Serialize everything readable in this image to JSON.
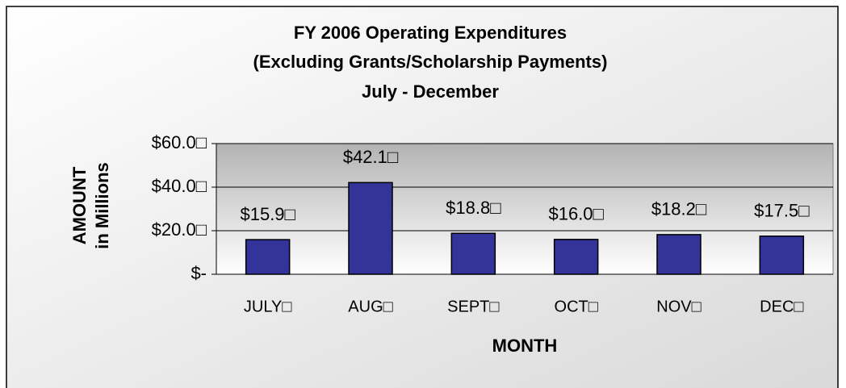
{
  "chart_data": {
    "type": "bar",
    "title": [
      "FY 2006 Operating Expenditures",
      "(Excluding Grants/Scholarship Payments)",
      "July - December"
    ],
    "x_label": "MONTH",
    "y_label": [
      "AMOUNT",
      "in Millions"
    ],
    "categories": [
      "JULY□",
      "AUG□",
      "SEPT□",
      "OCT□",
      "NOV□",
      "DEC□"
    ],
    "values": [
      15.9,
      42.1,
      18.8,
      16.0,
      18.2,
      17.5
    ],
    "value_labels": [
      "$15.9□",
      "$42.1□",
      "$18.8□",
      "$16.0□",
      "$18.2□",
      "$17.5□"
    ],
    "color": "#333399",
    "ylim": [
      0,
      60
    ],
    "yticks": [
      {
        "value": 0,
        "label": "$-"
      },
      {
        "value": 20,
        "label": "$20.0□"
      },
      {
        "value": 40,
        "label": "$40.0□"
      },
      {
        "value": 60,
        "label": "$60.0□"
      }
    ],
    "grid": true
  }
}
